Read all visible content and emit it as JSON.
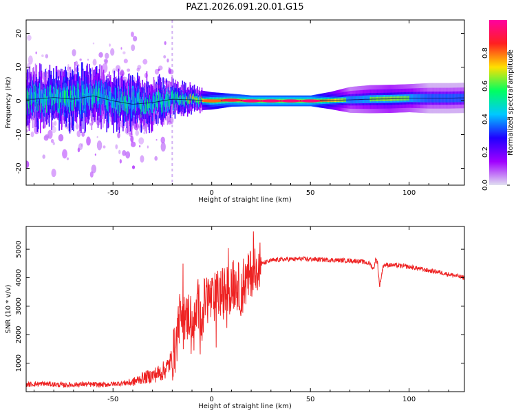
{
  "title": "PAZ1.2026.091.20.01.G15",
  "chart_data": [
    {
      "type": "heatmap",
      "xlabel": "Height of straight line (km)",
      "ylabel": "Frequency (Hz)",
      "xlim": [
        -94,
        128
      ],
      "ylim": [
        -25,
        24
      ],
      "xticks": [
        -50,
        0,
        50,
        100
      ],
      "xtick_labels": [
        "-50",
        "0",
        "50",
        "100"
      ],
      "yticks": [
        -20,
        -10,
        0,
        10,
        20
      ],
      "ytick_labels": [
        "-20",
        "-10",
        "0",
        "10",
        "20"
      ],
      "dashed_vertical_line_x": -20,
      "ridge": [
        {
          "x": -90,
          "freq": 0.5,
          "amp": 0.45,
          "spread": 2.2
        },
        {
          "x": -80,
          "freq": 1.0,
          "amp": 0.45,
          "spread": 2.0
        },
        {
          "x": -70,
          "freq": 0.5,
          "amp": 0.5,
          "spread": 2.2
        },
        {
          "x": -60,
          "freq": 1.5,
          "amp": 0.45,
          "spread": 2.2
        },
        {
          "x": -50,
          "freq": 0.0,
          "amp": 0.5,
          "spread": 2.0
        },
        {
          "x": -40,
          "freq": -1.0,
          "amp": 0.5,
          "spread": 2.0
        },
        {
          "x": -30,
          "freq": -0.5,
          "amp": 0.45,
          "spread": 1.8
        },
        {
          "x": -20,
          "freq": 0.5,
          "amp": 0.45,
          "spread": 1.5
        },
        {
          "x": -10,
          "freq": 0.3,
          "amp": 0.6,
          "spread": 1.0
        },
        {
          "x": 0,
          "freq": 0.0,
          "amp": 0.85,
          "spread": 0.8
        },
        {
          "x": 10,
          "freq": 0.2,
          "amp": 0.95,
          "spread": 0.6
        },
        {
          "x": 20,
          "freq": 0.0,
          "amp": 1.0,
          "spread": 0.5
        },
        {
          "x": 30,
          "freq": 0.0,
          "amp": 1.0,
          "spread": 0.5
        },
        {
          "x": 40,
          "freq": 0.0,
          "amp": 1.0,
          "spread": 0.5
        },
        {
          "x": 50,
          "freq": 0.0,
          "amp": 1.0,
          "spread": 0.5
        },
        {
          "x": 60,
          "freq": 0.1,
          "amp": 0.75,
          "spread": 0.8
        },
        {
          "x": 70,
          "freq": 0.3,
          "amp": 0.5,
          "spread": 1.2
        },
        {
          "x": 80,
          "freq": 0.5,
          "amp": 0.55,
          "spread": 1.3
        },
        {
          "x": 90,
          "freq": 0.6,
          "amp": 0.6,
          "spread": 1.3
        },
        {
          "x": 100,
          "freq": 0.8,
          "amp": 0.55,
          "spread": 1.3
        },
        {
          "x": 110,
          "freq": 0.8,
          "amp": 0.45,
          "spread": 1.4
        },
        {
          "x": 120,
          "freq": 0.8,
          "amp": 0.45,
          "spread": 1.4
        },
        {
          "x": 128,
          "freq": 0.9,
          "amp": 0.45,
          "spread": 1.4
        }
      ]
    },
    {
      "type": "colorbar",
      "label": "Normalized spectral amplitude",
      "range": [
        0,
        1
      ],
      "ticks": [
        0,
        0.2,
        0.4,
        0.6,
        0.8
      ],
      "tick_labels": [
        "0.0",
        "0.2",
        "0.4",
        "0.6",
        "0.8"
      ],
      "colormap": [
        "#e0e0f0",
        "#a000ff",
        "#2000ff",
        "#00c8ff",
        "#00ff60",
        "#ffe000",
        "#ff2020",
        "#ff00a0"
      ]
    },
    {
      "type": "line",
      "xlabel": "Height of straight line (km)",
      "ylabel": "SNR (10 * v/v)",
      "xlim": [
        -94,
        128
      ],
      "ylim": [
        0,
        5800
      ],
      "xticks": [
        -50,
        0,
        50,
        100
      ],
      "xtick_labels": [
        "-50",
        "0",
        "50",
        "100"
      ],
      "yticks": [
        1000,
        2000,
        3000,
        4000,
        5000
      ],
      "ytick_labels": [
        "1000",
        "2000",
        "3000",
        "4000",
        "5000"
      ],
      "line_color": "#ee2222",
      "x": [
        -94,
        -85,
        -75,
        -65,
        -55,
        -45,
        -40,
        -35,
        -30,
        -25,
        -22,
        -20,
        -18,
        -17,
        -15,
        -13,
        -11,
        -9,
        -7,
        -5,
        -3,
        0,
        3,
        6,
        9,
        12,
        15,
        18,
        20,
        23,
        26,
        30,
        35,
        40,
        45,
        50,
        55,
        60,
        65,
        70,
        75,
        80,
        82,
        83,
        84,
        85,
        87,
        90,
        95,
        100,
        105,
        110,
        115,
        120,
        125,
        128
      ],
      "y": [
        250,
        280,
        230,
        260,
        240,
        300,
        330,
        480,
        560,
        700,
        900,
        1200,
        1600,
        2400,
        3000,
        2500,
        2800,
        2200,
        3100,
        2600,
        3400,
        3200,
        3400,
        3500,
        3600,
        3800,
        3500,
        3900,
        4200,
        4450,
        4500,
        4600,
        4640,
        4650,
        4660,
        4650,
        4640,
        4620,
        4610,
        4600,
        4580,
        4500,
        4300,
        4650,
        4550,
        3700,
        4450,
        4450,
        4420,
        4380,
        4320,
        4250,
        4200,
        4120,
        4050,
        4000
      ]
    }
  ]
}
